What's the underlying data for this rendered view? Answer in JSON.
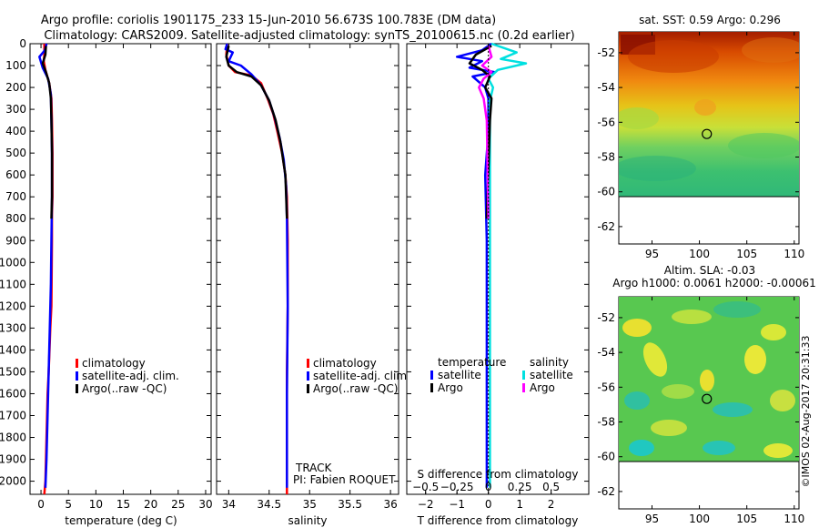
{
  "title_line1": "Argo profile: coriolis 1901175_233 15-Jun-2010 56.673S 100.783E (DM data)",
  "title_line2": "Climatology: CARS2009. Satellite-adjusted climatology: synTS_20100615.nc (0.2d earlier)",
  "timestamp": "©IMOS 02-Aug-2017 20:31:33",
  "chart_data": [
    {
      "id": "temperature",
      "type": "line",
      "xlabel": "temperature (deg C)",
      "ylabel": "",
      "xlim": [
        -2,
        31
      ],
      "ylim": [
        2060,
        0
      ],
      "xticks": [
        0,
        5,
        10,
        15,
        20,
        25,
        30
      ],
      "yticks": [
        0,
        100,
        200,
        300,
        400,
        500,
        600,
        700,
        800,
        900,
        1000,
        1100,
        1200,
        1300,
        1400,
        1500,
        1600,
        1700,
        1800,
        1900,
        2000
      ],
      "legend": [
        "climatology",
        "satellite-adj. clim.",
        "Argo(..raw -QC)"
      ],
      "series": [
        {
          "name": "climatology",
          "color": "#ff0000",
          "x": [
            0.6,
            0.6,
            0.5,
            0.8,
            1.5,
            1.9,
            2.0,
            2.1,
            2.1,
            2.0,
            2.0,
            1.9,
            1.7,
            1.4,
            1.2,
            1.0,
            0.8,
            0.6
          ],
          "y": [
            0,
            50,
            80,
            120,
            180,
            250,
            350,
            500,
            700,
            780,
            900,
            1200,
            1300,
            1500,
            1600,
            1800,
            2000,
            2060
          ]
        },
        {
          "name": "satellite-adj. clim.",
          "color": "#0000ff",
          "x": [
            1.0,
            0.7,
            -0.3,
            0.3,
            1.3,
            1.8,
            1.9,
            2.0,
            2.0,
            1.9,
            1.8,
            1.6,
            1.4,
            1.2,
            1.0,
            0.8
          ],
          "y": [
            0,
            30,
            60,
            110,
            160,
            230,
            350,
            500,
            700,
            900,
            1100,
            1300,
            1500,
            1700,
            1900,
            2030
          ]
        },
        {
          "name": "Argo(..raw -QC)",
          "color": "#000000",
          "x": [
            0.9,
            0.8,
            0.3,
            0.9,
            1.5,
            1.8,
            1.9,
            2.0,
            2.0,
            1.9
          ],
          "y": [
            10,
            50,
            90,
            130,
            180,
            250,
            350,
            500,
            700,
            800
          ]
        }
      ]
    },
    {
      "id": "salinity",
      "type": "line",
      "xlabel": "salinity",
      "ylabel": "",
      "xlim": [
        33.85,
        36.1
      ],
      "ylim": [
        2060,
        0
      ],
      "xticks": [
        34,
        34.5,
        35,
        35.5,
        36
      ],
      "xticklabels": [
        "34",
        "34.5",
        "35",
        "35.5",
        "36"
      ],
      "legend": [
        "climatology",
        "satellite-adj. clim.",
        "Argo(..raw -QC)"
      ],
      "annotations": [
        "TRACK",
        "PI: Fabien ROQUET"
      ],
      "series": [
        {
          "name": "climatology",
          "color": "#ff0000",
          "x": [
            33.98,
            33.97,
            34.0,
            34.08,
            34.28,
            34.4,
            34.48,
            34.55,
            34.6,
            34.66,
            34.7,
            34.72,
            34.73,
            34.73,
            34.72,
            34.72,
            34.72
          ],
          "y": [
            0,
            50,
            100,
            130,
            145,
            180,
            250,
            320,
            400,
            500,
            600,
            700,
            900,
            1200,
            1500,
            1800,
            2060
          ]
        },
        {
          "name": "satellite-adj. clim.",
          "color": "#0000ff",
          "x": [
            33.98,
            33.96,
            34.05,
            34.0,
            34.15,
            34.28,
            34.4,
            34.5,
            34.57,
            34.63,
            34.68,
            34.71,
            34.72,
            34.73,
            34.72,
            34.72
          ],
          "y": [
            0,
            25,
            40,
            80,
            100,
            140,
            190,
            260,
            340,
            430,
            530,
            650,
            800,
            1200,
            1600,
            2030
          ]
        },
        {
          "name": "Argo(..raw -QC)",
          "color": "#000000",
          "x": [
            34.0,
            33.97,
            34.0,
            34.1,
            34.28,
            34.4,
            34.5,
            34.58,
            34.64,
            34.7,
            34.72
          ],
          "y": [
            10,
            60,
            100,
            130,
            150,
            190,
            260,
            350,
            450,
            600,
            800
          ]
        }
      ]
    },
    {
      "id": "difference",
      "type": "line",
      "xlabel": "T difference from climatology",
      "xlabel_top": "S difference from climatology",
      "xlim": [
        -2.6,
        3.2
      ],
      "ylim": [
        2060,
        0
      ],
      "xticks": [
        -2,
        -1,
        0,
        1,
        2
      ],
      "xticklabels": [
        "−2",
        "−1",
        "0",
        "1",
        "2"
      ],
      "top_ticks": [
        -0.5,
        -0.25,
        0,
        0.25,
        0.5
      ],
      "top_ticklabels": [
        "−0.5",
        "−0.25",
        "0",
        "0.25",
        "0.5"
      ],
      "legend_temperature": [
        "temperature",
        "satellite",
        "Argo"
      ],
      "legend_salinity": [
        "salinity",
        "satellite",
        "Argo"
      ],
      "series": [
        {
          "name": "temperature satellite",
          "color": "#0000ff",
          "x": [
            0.1,
            -0.2,
            -1.0,
            -0.2,
            -0.6,
            0.2,
            -0.5,
            -0.1,
            0.0,
            0.0,
            -0.1,
            -0.05,
            -0.05,
            -0.05,
            -0.05,
            -0.05
          ],
          "y": [
            0,
            30,
            60,
            80,
            110,
            130,
            150,
            200,
            250,
            400,
            600,
            900,
            1200,
            1500,
            1800,
            2030
          ]
        },
        {
          "name": "salinity satellite",
          "color": "#00e0e0",
          "x": [
            0.1,
            0.9,
            0.4,
            1.2,
            0.3,
            0.0,
            0.15,
            0.05,
            0.05,
            0.05,
            0.05,
            0.05
          ],
          "y": [
            0,
            40,
            70,
            90,
            120,
            160,
            200,
            260,
            400,
            700,
            1200,
            2030
          ]
        },
        {
          "name": "temperature Argo",
          "color": "#000000",
          "x": [
            0.1,
            -0.4,
            -0.6,
            -0.2,
            0.05,
            -0.1,
            0.1,
            0.05,
            -0.05
          ],
          "y": [
            10,
            50,
            90,
            120,
            150,
            200,
            250,
            350,
            800
          ]
        },
        {
          "name": "salinity Argo",
          "color": "#ff00ff",
          "x": [
            0.0,
            0.1,
            -0.2,
            0.1,
            -0.15,
            -0.3,
            -0.15,
            -0.05,
            0.0
          ],
          "y": [
            10,
            60,
            100,
            130,
            160,
            200,
            250,
            350,
            800
          ]
        },
        {
          "name": "zero reference",
          "color": "#000000",
          "dashed": true,
          "x": [
            0,
            0
          ],
          "y": [
            0,
            2060
          ]
        }
      ]
    },
    {
      "id": "sst_map",
      "type": "heatmap",
      "title": "sat. SST: 0.59 Argo: 0.296",
      "xlim": [
        91.5,
        110.5
      ],
      "ylim": [
        -63,
        -50.8
      ],
      "xticks": [
        95,
        100,
        105,
        110
      ],
      "yticks": [
        -52,
        -54,
        -56,
        -58,
        -60,
        -62
      ],
      "data_extent_lat": [
        -60,
        -50.8
      ],
      "marker": {
        "lon": 100.783,
        "lat": -56.673
      }
    },
    {
      "id": "sla_map",
      "type": "heatmap",
      "title": "Altim. SLA: -0.03",
      "subtitle": "Argo h1000: 0.0061 h2000: -0.00061",
      "xlim": [
        91.5,
        110.5
      ],
      "ylim": [
        -63,
        -50.8
      ],
      "xticks": [
        95,
        100,
        105,
        110
      ],
      "yticks": [
        -52,
        -54,
        -56,
        -58,
        -60,
        -62
      ],
      "data_extent_lat": [
        -60,
        -50.8
      ],
      "marker": {
        "lon": 100.783,
        "lat": -56.673
      }
    }
  ]
}
